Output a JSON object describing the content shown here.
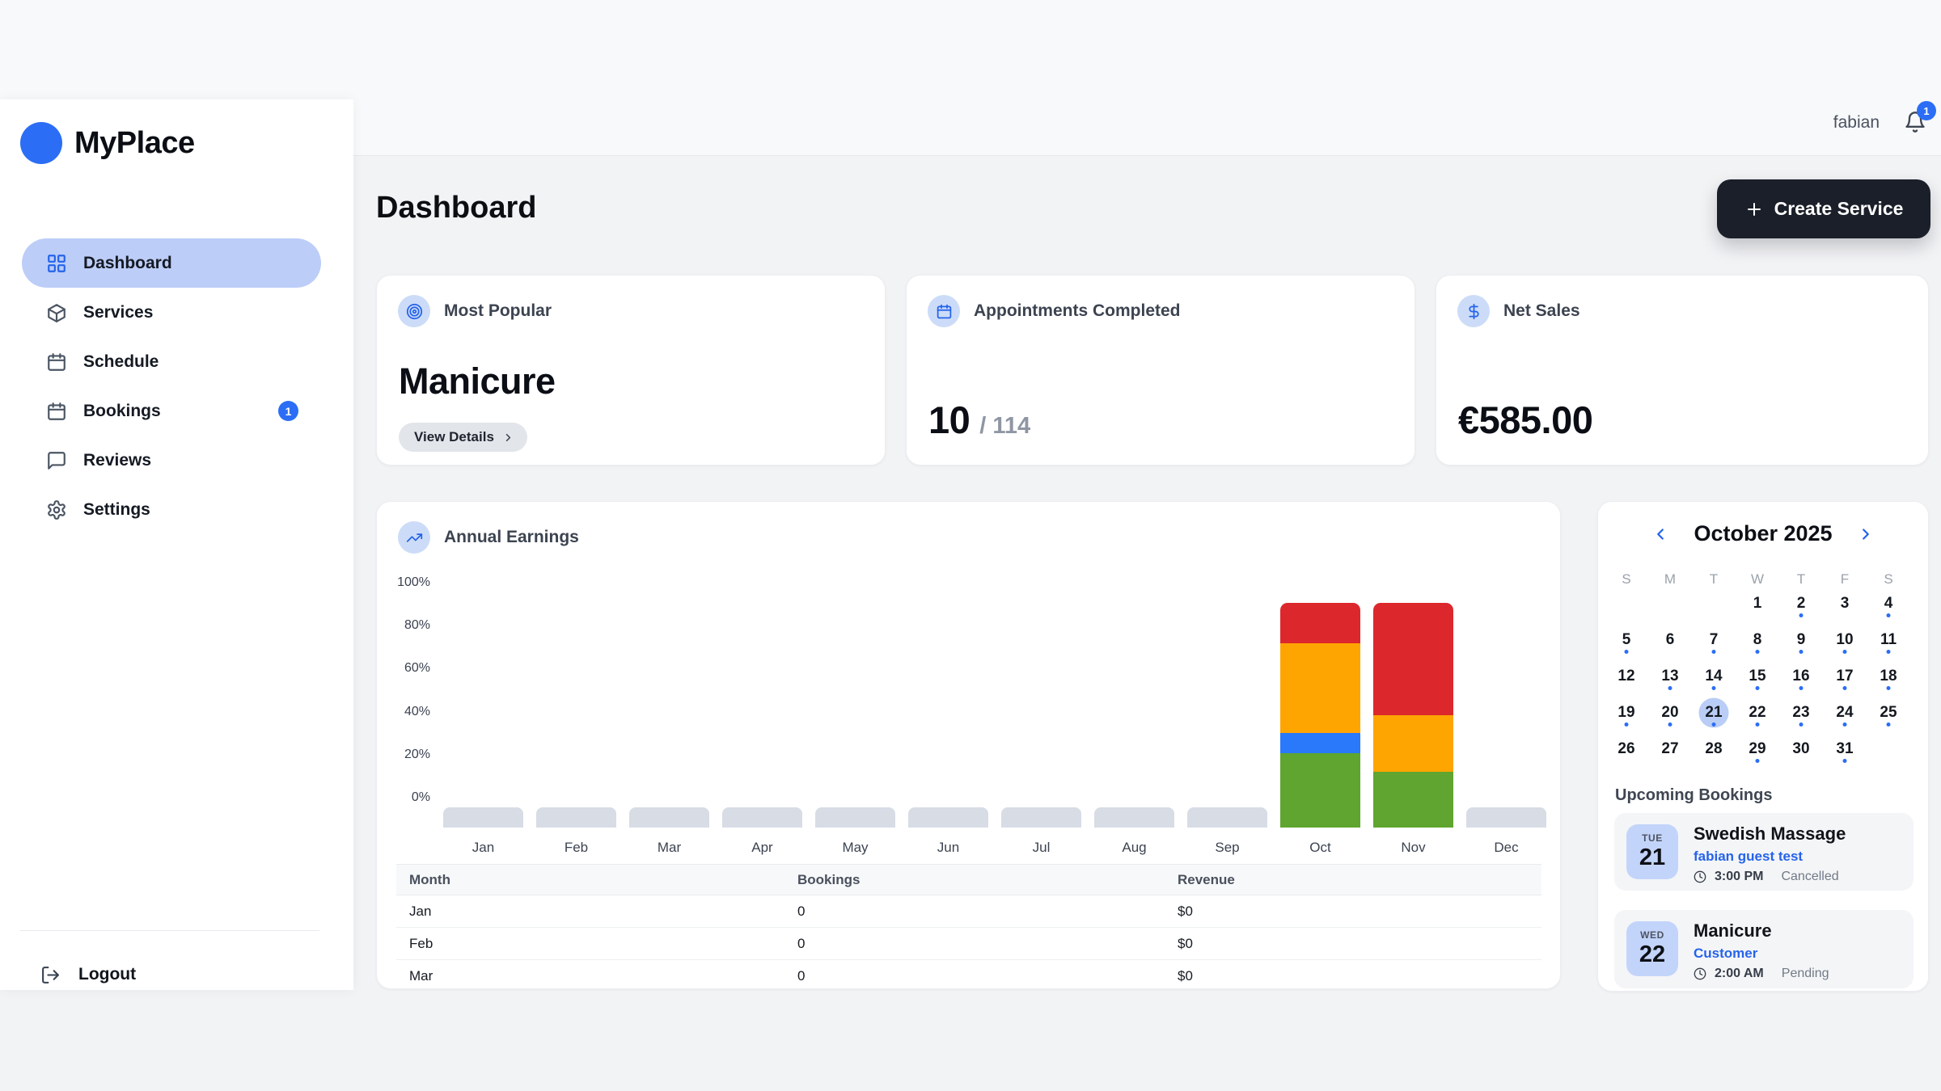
{
  "app": {
    "name": "MyPlace",
    "user": "fabian",
    "notification_count": "1"
  },
  "colors": {
    "accent_blue": "#2b6ef5",
    "link_blue": "#2563eb",
    "active_pill": "#bccdf8",
    "icon_circle_bg": "#ccdcf8",
    "selected_day_bg": "#b9cdf6",
    "date_chip_bg": "#c3d4fb",
    "dark_button": "#1b1f29",
    "placeholder_bar": "#d7dce5",
    "chart_green": "#5fa52f",
    "chart_blue": "#2979fa",
    "chart_orange": "#ffa502",
    "chart_red": "#dc282c"
  },
  "header": {
    "title": "Dashboard",
    "create_button_label": "Create Service"
  },
  "sidebar": {
    "items": [
      {
        "label": "Dashboard",
        "icon": "grid",
        "active": true
      },
      {
        "label": "Services",
        "icon": "package"
      },
      {
        "label": "Schedule",
        "icon": "calendar"
      },
      {
        "label": "Bookings",
        "icon": "calendar",
        "badge": "1"
      },
      {
        "label": "Reviews",
        "icon": "chat"
      },
      {
        "label": "Settings",
        "icon": "gear"
      }
    ],
    "logout_label": "Logout"
  },
  "stats": [
    {
      "label": "Most Popular",
      "icon": "target",
      "value": "Manicure",
      "button_label": "View Details"
    },
    {
      "label": "Appointments Completed",
      "icon": "calendar",
      "value": "10",
      "total_label": "/ 114"
    },
    {
      "label": "Net Sales",
      "icon": "dollar",
      "value": "€585.00"
    }
  ],
  "chart_data": {
    "type": "bar",
    "stacked": true,
    "title": "Annual Earnings",
    "categories": [
      "Jan",
      "Feb",
      "Mar",
      "Apr",
      "May",
      "Jun",
      "Jul",
      "Aug",
      "Sep",
      "Oct",
      "Nov",
      "Dec"
    ],
    "ylabel": "",
    "ylim": [
      0,
      100
    ],
    "yticks": [
      "100%",
      "80%",
      "60%",
      "40%",
      "20%",
      "0%"
    ],
    "legend": "none",
    "series": [
      {
        "name": "green",
        "color": "#5fa52f",
        "values": [
          0,
          0,
          0,
          0,
          0,
          0,
          0,
          0,
          0,
          33,
          25,
          0
        ]
      },
      {
        "name": "blue",
        "color": "#2979fa",
        "values": [
          0,
          0,
          0,
          0,
          0,
          0,
          0,
          0,
          0,
          9,
          0,
          0
        ]
      },
      {
        "name": "orange",
        "color": "#ffa502",
        "values": [
          0,
          0,
          0,
          0,
          0,
          0,
          0,
          0,
          0,
          40,
          25,
          0
        ]
      },
      {
        "name": "red",
        "color": "#dc282c",
        "values": [
          0,
          0,
          0,
          0,
          0,
          0,
          0,
          0,
          0,
          18,
          50,
          0
        ]
      }
    ],
    "placeholder_months": [
      "Jan",
      "Feb",
      "Mar",
      "Apr",
      "May",
      "Jun",
      "Jul",
      "Aug",
      "Sep",
      "Dec"
    ]
  },
  "table": {
    "headers": [
      "Month",
      "Bookings",
      "Revenue"
    ],
    "rows": [
      [
        "Jan",
        "0",
        "$0"
      ],
      [
        "Feb",
        "0",
        "$0"
      ],
      [
        "Mar",
        "0",
        "$0"
      ]
    ]
  },
  "calendar": {
    "title": "October 2025",
    "weekdays": [
      "S",
      "M",
      "T",
      "W",
      "T",
      "F",
      "S"
    ],
    "start_offset": 3,
    "num_days": 31,
    "selected_day": 21,
    "dotted_days": [
      2,
      4,
      5,
      7,
      8,
      9,
      10,
      11,
      13,
      14,
      15,
      16,
      17,
      18,
      19,
      20,
      21,
      22,
      23,
      24,
      25,
      29,
      31
    ]
  },
  "bookings": {
    "heading": "Upcoming Bookings",
    "items": [
      {
        "day": "TUE",
        "date": "21",
        "title": "Swedish Massage",
        "customer": "fabian guest test",
        "time": "3:00 PM",
        "status": "Cancelled"
      },
      {
        "day": "WED",
        "date": "22",
        "title": "Manicure",
        "customer": "Customer",
        "time": "2:00 AM",
        "status": "Pending"
      }
    ]
  }
}
